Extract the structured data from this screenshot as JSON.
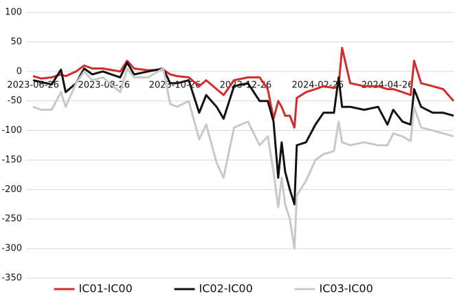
{
  "chart_data": {
    "type": "line",
    "x": [
      "2023-06-26",
      "2023-07-03",
      "2023-07-12",
      "2023-07-20",
      "2023-07-24",
      "2023-08-02",
      "2023-08-09",
      "2023-08-16",
      "2023-08-25",
      "2023-09-09",
      "2023-09-15",
      "2023-09-21",
      "2023-10-03",
      "2023-10-16",
      "2023-10-22",
      "2023-10-28",
      "2023-11-07",
      "2023-11-16",
      "2023-11-22",
      "2023-12-01",
      "2023-12-07",
      "2023-12-16",
      "2023-12-28",
      "2024-01-07",
      "2024-01-14",
      "2024-01-19",
      "2024-01-23",
      "2024-01-26",
      "2024-01-29",
      "2024-02-02",
      "2024-02-06",
      "2024-02-08",
      "2024-02-16",
      "2024-02-24",
      "2024-03-02",
      "2024-03-11",
      "2024-03-15",
      "2024-03-18",
      "2024-03-25",
      "2024-04-06",
      "2024-04-18",
      "2024-04-26",
      "2024-05-01",
      "2024-05-09",
      "2024-05-16",
      "2024-05-19",
      "2024-05-25",
      "2024-06-04",
      "2024-06-13",
      "2024-06-22"
    ],
    "series": [
      {
        "name": "IC01-IC00",
        "color": "#d42a2a",
        "values": [
          -8,
          -12,
          -10,
          -5,
          -8,
          0,
          10,
          5,
          5,
          0,
          18,
          5,
          2,
          3,
          -5,
          -8,
          -10,
          -25,
          -15,
          -30,
          -40,
          -15,
          -10,
          -10,
          -30,
          -80,
          -50,
          -60,
          -75,
          -75,
          -95,
          -45,
          -35,
          -30,
          -25,
          -28,
          -25,
          40,
          -20,
          -25,
          -25,
          -30,
          -30,
          -35,
          -40,
          18,
          -20,
          -25,
          -30,
          -50
        ]
      },
      {
        "name": "IC02-IC00",
        "color": "#111111",
        "values": [
          -15,
          -18,
          -22,
          3,
          -35,
          -20,
          5,
          -5,
          0,
          -10,
          15,
          -5,
          0,
          5,
          -20,
          -20,
          -15,
          -70,
          -40,
          -60,
          -80,
          -25,
          -20,
          -50,
          -50,
          -85,
          -180,
          -120,
          -170,
          -200,
          -225,
          -125,
          -120,
          -90,
          -70,
          -70,
          -10,
          -60,
          -60,
          -65,
          -60,
          -90,
          -65,
          -85,
          -90,
          -30,
          -60,
          -70,
          -70,
          -75
        ]
      },
      {
        "name": "IC03-IC00",
        "color": "#c8c8c8",
        "values": [
          -60,
          -65,
          -65,
          -35,
          -60,
          -20,
          0,
          -15,
          -10,
          -35,
          5,
          -10,
          -10,
          5,
          -55,
          -60,
          -50,
          -115,
          -90,
          -155,
          -180,
          -95,
          -85,
          -125,
          -110,
          -170,
          -230,
          -180,
          -225,
          -250,
          -300,
          -210,
          -185,
          -150,
          -140,
          -135,
          -85,
          -120,
          -125,
          -120,
          -125,
          -125,
          -105,
          -110,
          -118,
          -60,
          -95,
          -100,
          -105,
          -110
        ]
      }
    ],
    "xlim": [
      "2023-06-20",
      "2024-06-22"
    ],
    "xticks": [
      "2023-06-26",
      "2023-08-26",
      "2023-10-26",
      "2023-12-26",
      "2024-02-26",
      "2024-04-26"
    ],
    "ylim": [
      -350,
      100
    ],
    "yticks": [
      100,
      50,
      0,
      -50,
      -100,
      -150,
      -200,
      -250,
      -300,
      -350
    ],
    "grid": true,
    "legend": "bottom"
  }
}
